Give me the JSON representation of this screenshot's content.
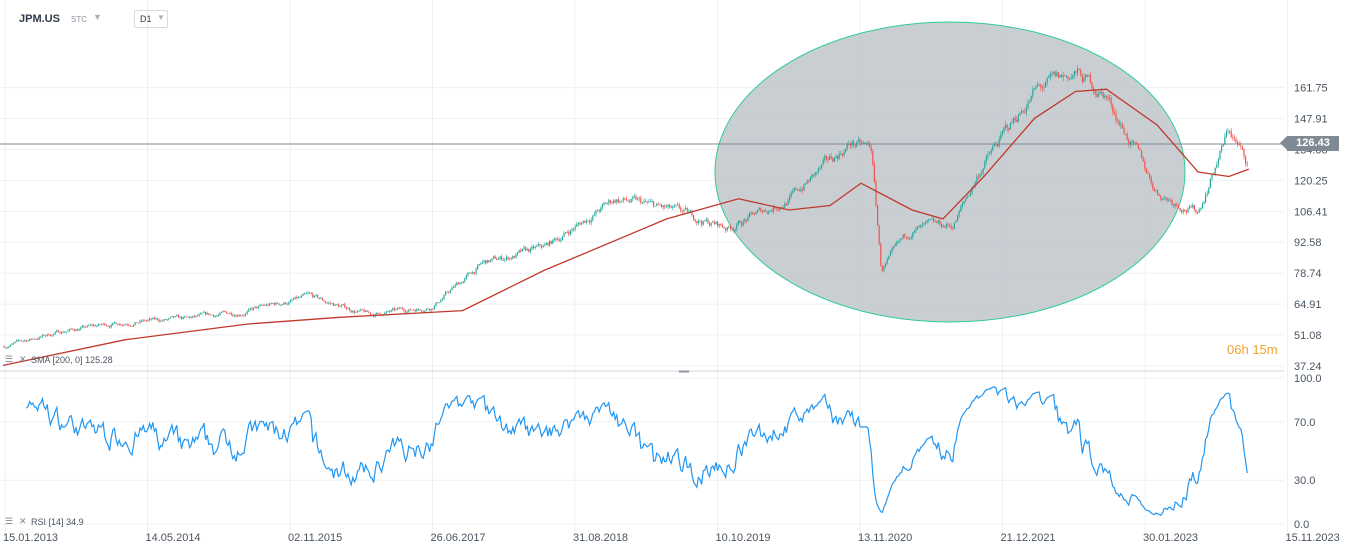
{
  "header": {
    "symbol": "JPM.US",
    "source": "STC",
    "timeframe": "D1"
  },
  "price_scale": [
    "161.75",
    "147.91",
    "134.08",
    "120.25",
    "106.41",
    "92.58",
    "78.74",
    "64.91",
    "51.08",
    "37.24"
  ],
  "last_price": "126.43",
  "countdown": {
    "hours": "06h",
    "minutes": "15m"
  },
  "sma_label": {
    "name": "SMA",
    "params": "[200, 0]",
    "value": "125.28"
  },
  "rsi_label": {
    "name": "RSI",
    "params": "[14]",
    "value": "34.9"
  },
  "rsi_scale": [
    "100.0",
    "70.0",
    "30.0",
    "0.0"
  ],
  "date_axis": [
    "15.01.2013",
    "14.05.2014",
    "02.11.2015",
    "26.06.2017",
    "31.08.2018",
    "10.10.2019",
    "13.11.2020",
    "21.12.2021",
    "30.01.2023",
    "15.11.2023"
  ],
  "colors": {
    "up": "#26a69a",
    "down": "#ef5350",
    "sma": "#c0392b",
    "rsi": "#2196f3",
    "ellipse_fill": "#bfc6cb",
    "ellipse_stroke": "#2ecc9a",
    "last_price_line": "#7d8790"
  },
  "chart_data": {
    "type": "candlestick",
    "symbol": "JPM.US",
    "timeframe": "D1",
    "ylim": [
      37.24,
      175
    ],
    "price_axis_ticks": [
      161.75,
      147.91,
      134.08,
      120.25,
      106.41,
      92.58,
      78.74,
      64.91,
      51.08,
      37.24
    ],
    "last_price": 126.43,
    "price_series": {
      "name": "JPM.US",
      "dates": [
        "2013-01",
        "2013-07",
        "2014-01",
        "2014-07",
        "2015-01",
        "2015-07",
        "2016-01",
        "2016-07",
        "2016-12",
        "2017-06",
        "2018-01",
        "2018-06",
        "2018-12",
        "2019-06",
        "2019-12",
        "2020-02",
        "2020-03",
        "2020-06",
        "2020-10",
        "2021-01",
        "2021-06",
        "2021-10",
        "2022-01",
        "2022-06",
        "2022-10",
        "2023-01",
        "2023-03"
      ],
      "values": [
        46,
        53,
        57,
        58,
        62,
        68,
        60,
        64,
        83,
        90,
        112,
        107,
        99,
        112,
        137,
        134,
        80,
        98,
        100,
        128,
        160,
        168,
        158,
        115,
        106,
        143,
        126.4
      ]
    },
    "sma_series": {
      "name": "SMA",
      "period": 200,
      "dates": [
        "2013-01",
        "2014-01",
        "2015-01",
        "2015-10",
        "2016-06",
        "2016-10",
        "2017-06",
        "2018-06",
        "2019-01",
        "2019-06",
        "2019-10",
        "2020-01",
        "2020-06",
        "2020-09",
        "2021-01",
        "2021-06",
        "2021-10",
        "2022-01",
        "2022-06",
        "2022-10",
        "2023-01",
        "2023-03"
      ],
      "values": [
        37.5,
        49,
        56,
        59,
        61,
        62,
        80,
        103,
        112,
        107,
        109,
        119,
        107,
        103,
        122,
        148,
        160,
        161,
        145,
        124,
        122,
        125.28
      ]
    },
    "rsi": {
      "name": "RSI",
      "period": 14,
      "last": 34.9,
      "ylim": [
        0,
        100
      ],
      "levels": [
        30,
        70
      ],
      "ticks": [
        100,
        70,
        30,
        0
      ]
    },
    "x_ticks": [
      "15.01.2013",
      "14.05.2014",
      "02.11.2015",
      "26.06.2017",
      "31.08.2018",
      "10.10.2019",
      "13.11.2020",
      "21.12.2021",
      "30.01.2023",
      "15.11.2023"
    ]
  }
}
